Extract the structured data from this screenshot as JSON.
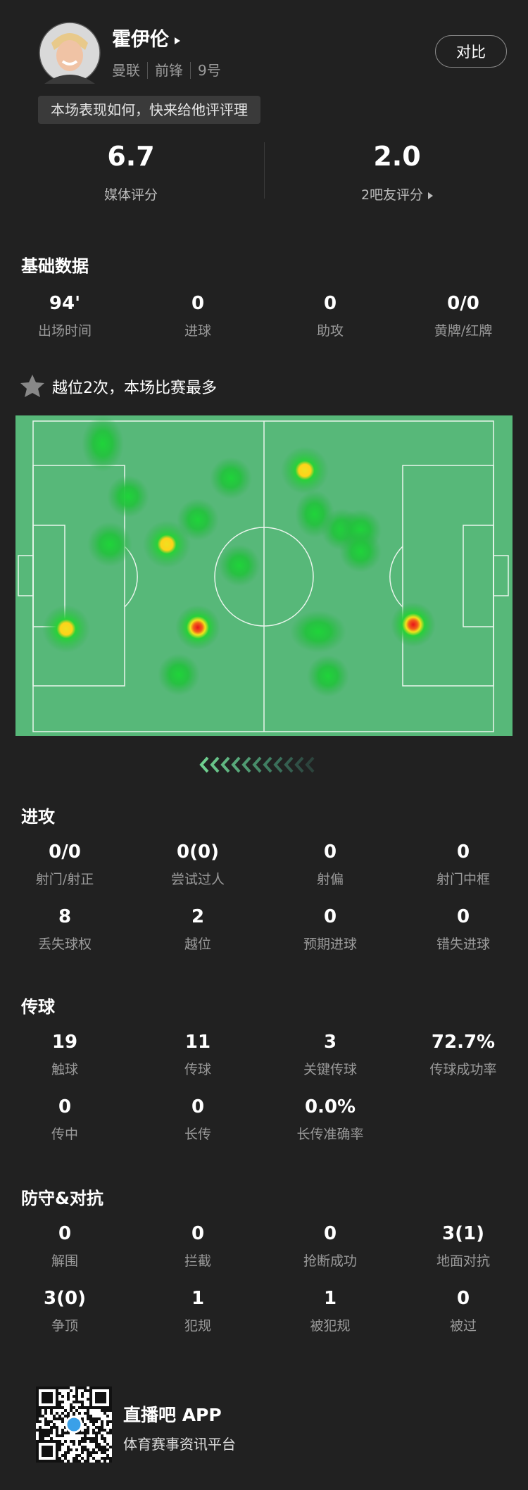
{
  "header": {
    "player_name": "霍伊伦",
    "team": "曼联",
    "position": "前锋",
    "number": "9号",
    "compare_button": "对比",
    "prompt": "本场表现如何，快来给他评评理"
  },
  "ratings": [
    {
      "value": "6.7",
      "label": "媒体评分"
    },
    {
      "value": "2.0",
      "label": "2吧友评分"
    }
  ],
  "basic": {
    "title": "基础数据",
    "stats": [
      {
        "value": "94'",
        "label": "出场时间"
      },
      {
        "value": "0",
        "label": "进球"
      },
      {
        "value": "0",
        "label": "助攻"
      },
      {
        "value": "0/0",
        "label": "黄牌/红牌"
      }
    ]
  },
  "highlight": "越位2次，本场比赛最多",
  "sections": [
    {
      "title": "进攻",
      "stats": [
        {
          "value": "0/0",
          "label": "射门/射正"
        },
        {
          "value": "0(0)",
          "label": "尝试过人"
        },
        {
          "value": "0",
          "label": "射偏"
        },
        {
          "value": "0",
          "label": "射门中框"
        },
        {
          "value": "8",
          "label": "丢失球权"
        },
        {
          "value": "2",
          "label": "越位"
        },
        {
          "value": "0",
          "label": "预期进球"
        },
        {
          "value": "0",
          "label": "错失进球"
        }
      ]
    },
    {
      "title": "传球",
      "stats": [
        {
          "value": "19",
          "label": "触球"
        },
        {
          "value": "11",
          "label": "传球"
        },
        {
          "value": "3",
          "label": "关键传球"
        },
        {
          "value": "72.7%",
          "label": "传球成功率"
        },
        {
          "value": "0",
          "label": "传中"
        },
        {
          "value": "0",
          "label": "长传"
        },
        {
          "value": "0.0%",
          "label": "长传准确率"
        }
      ]
    },
    {
      "title": "防守&对抗",
      "stats": [
        {
          "value": "0",
          "label": "解围"
        },
        {
          "value": "0",
          "label": "拦截"
        },
        {
          "value": "0",
          "label": "抢断成功"
        },
        {
          "value": "3(1)",
          "label": "地面对抗"
        },
        {
          "value": "3(0)",
          "label": "争顶"
        },
        {
          "value": "1",
          "label": "犯规"
        },
        {
          "value": "1",
          "label": "被犯规"
        },
        {
          "value": "0",
          "label": "被过"
        }
      ]
    }
  ],
  "footer": {
    "app_name": "直播吧 APP",
    "tagline": "体育赛事资讯平台"
  }
}
